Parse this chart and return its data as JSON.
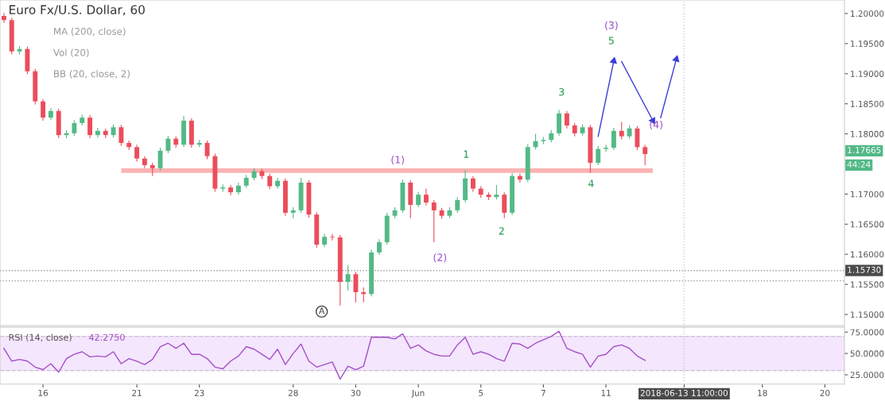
{
  "chart_data": [
    {
      "type": "candlestick",
      "title": "Euro Fx/U.S. Dollar, 60",
      "categories": [
        null,
        null,
        null,
        null,
        null,
        null,
        null,
        null,
        null,
        null,
        null,
        null,
        null,
        null,
        null,
        null,
        null,
        null,
        null,
        null,
        null,
        null,
        null,
        null,
        null,
        null,
        null,
        null,
        null,
        null,
        null,
        null,
        null,
        null,
        null,
        null,
        null,
        null,
        null,
        null,
        null,
        null,
        null,
        null,
        null,
        null,
        null,
        null,
        null,
        null,
        null,
        null,
        null,
        null,
        null,
        null,
        null,
        null,
        null,
        null,
        null,
        null,
        null,
        null,
        null,
        null,
        null,
        null,
        null,
        null,
        null,
        null,
        null,
        null,
        null,
        null,
        null,
        null,
        null,
        null,
        null,
        null,
        null,
        null,
        null,
        null,
        null,
        null,
        null,
        null,
        null,
        null,
        null,
        null,
        null,
        null,
        null,
        null,
        null,
        null,
        null,
        null,
        null,
        null,
        null,
        null,
        null,
        null
      ],
      "ohlc": [
        [
          1.1996,
          1.2001,
          1.1984,
          1.1989
        ],
        [
          1.1989,
          1.1993,
          1.1932,
          1.1937
        ],
        [
          1.1937,
          1.1946,
          1.1932,
          1.1941
        ],
        [
          1.1941,
          1.1945,
          1.1899,
          1.1904
        ],
        [
          1.1904,
          1.1908,
          1.1849,
          1.1854
        ],
        [
          1.1854,
          1.1858,
          1.1822,
          1.1827
        ],
        [
          1.1827,
          1.1843,
          1.1823,
          1.1838
        ],
        [
          1.1838,
          1.1842,
          1.1793,
          1.1798
        ],
        [
          1.1798,
          1.1806,
          1.1793,
          1.1801
        ],
        [
          1.1801,
          1.1823,
          1.1797,
          1.1818
        ],
        [
          1.1818,
          1.1832,
          1.1814,
          1.1827
        ],
        [
          1.1827,
          1.1831,
          1.1793,
          1.1798
        ],
        [
          1.1798,
          1.181,
          1.1794,
          1.1805
        ],
        [
          1.1805,
          1.1809,
          1.1793,
          1.1798
        ],
        [
          1.1798,
          1.1816,
          1.1794,
          1.1811
        ],
        [
          1.1811,
          1.1815,
          1.178,
          1.1785
        ],
        [
          1.1785,
          1.1789,
          1.1773,
          1.1778
        ],
        [
          1.1778,
          1.1782,
          1.1754,
          1.1759
        ],
        [
          1.1759,
          1.1763,
          1.1743,
          1.1748
        ],
        [
          1.1748,
          1.1752,
          1.173,
          1.1743
        ],
        [
          1.1743,
          1.1777,
          1.1739,
          1.1772
        ],
        [
          1.1772,
          1.1797,
          1.1768,
          1.1792
        ],
        [
          1.1792,
          1.1796,
          1.1777,
          1.1782
        ],
        [
          1.1782,
          1.183,
          1.1778,
          1.1822
        ],
        [
          1.1822,
          1.1826,
          1.1777,
          1.1782
        ],
        [
          1.1782,
          1.179,
          1.1778,
          1.1785
        ],
        [
          1.1785,
          1.1789,
          1.1758,
          1.1763
        ],
        [
          1.1763,
          1.1767,
          1.1704,
          1.1709
        ],
        [
          1.1709,
          1.1716,
          1.1704,
          1.1711
        ],
        [
          1.1711,
          1.1715,
          1.1698,
          1.1703
        ],
        [
          1.1703,
          1.1719,
          1.1699,
          1.1714
        ],
        [
          1.1714,
          1.1732,
          1.171,
          1.1727
        ],
        [
          1.1727,
          1.1743,
          1.1723,
          1.1738
        ],
        [
          1.1738,
          1.1742,
          1.1725,
          1.173
        ],
        [
          1.173,
          1.1734,
          1.1708,
          1.1713
        ],
        [
          1.1713,
          1.1727,
          1.1709,
          1.1722
        ],
        [
          1.1722,
          1.1726,
          1.1664,
          1.1669
        ],
        [
          1.1669,
          1.1678,
          1.166,
          1.1673
        ],
        [
          1.1673,
          1.1727,
          1.1669,
          1.1719
        ],
        [
          1.1719,
          1.1723,
          1.1661,
          1.1666
        ],
        [
          1.1666,
          1.167,
          1.1611,
          1.1616
        ],
        [
          1.1616,
          1.1634,
          1.1612,
          1.1629
        ],
        [
          1.1629,
          1.1634,
          1.1623,
          1.1628
        ],
        [
          1.1628,
          1.1632,
          1.1515,
          1.1554
        ],
        [
          1.1554,
          1.1582,
          1.154,
          1.1567
        ],
        [
          1.1567,
          1.1571,
          1.152,
          1.1537
        ],
        [
          1.1537,
          1.1545,
          1.152,
          1.1534
        ],
        [
          1.1534,
          1.1608,
          1.153,
          1.1603
        ],
        [
          1.1603,
          1.1625,
          1.1599,
          1.162
        ],
        [
          1.162,
          1.1669,
          1.1616,
          1.1664
        ],
        [
          1.1664,
          1.1678,
          1.166,
          1.1673
        ],
        [
          1.1673,
          1.1724,
          1.1669,
          1.1719
        ],
        [
          1.1719,
          1.1723,
          1.166,
          1.1682
        ],
        [
          1.1682,
          1.1704,
          1.1678,
          1.1699
        ],
        [
          1.1699,
          1.1709,
          1.1681,
          1.1686
        ],
        [
          1.1686,
          1.169,
          1.162,
          1.1673
        ],
        [
          1.1673,
          1.1677,
          1.1659,
          1.1664
        ],
        [
          1.1664,
          1.1678,
          1.166,
          1.1673
        ],
        [
          1.1673,
          1.1695,
          1.1669,
          1.169
        ],
        [
          1.169,
          1.174,
          1.1686,
          1.1726
        ],
        [
          1.1726,
          1.173,
          1.1704,
          1.1709
        ],
        [
          1.1709,
          1.1713,
          1.1694,
          1.1699
        ],
        [
          1.1699,
          1.1703,
          1.169,
          1.1695
        ],
        [
          1.1695,
          1.1715,
          1.1691,
          1.1699
        ],
        [
          1.1699,
          1.1703,
          1.166,
          1.1669
        ],
        [
          1.1669,
          1.1735,
          1.1665,
          1.173
        ],
        [
          1.173,
          1.1734,
          1.1719,
          1.1724
        ],
        [
          1.1724,
          1.1783,
          1.172,
          1.1778
        ],
        [
          1.1778,
          1.18,
          1.1774,
          1.1788
        ],
        [
          1.1788,
          1.1795,
          1.1783,
          1.179
        ],
        [
          1.179,
          1.1806,
          1.1786,
          1.1801
        ],
        [
          1.1801,
          1.184,
          1.1797,
          1.1834
        ],
        [
          1.1834,
          1.1838,
          1.1809,
          1.1814
        ],
        [
          1.1814,
          1.1818,
          1.1796,
          1.1801
        ],
        [
          1.1801,
          1.1816,
          1.1797,
          1.1811
        ],
        [
          1.1811,
          1.1815,
          1.1735,
          1.1752
        ],
        [
          1.1752,
          1.178,
          1.1748,
          1.1775
        ],
        [
          1.1775,
          1.1782,
          1.177,
          1.1777
        ],
        [
          1.1777,
          1.181,
          1.1773,
          1.1805
        ],
        [
          1.1805,
          1.182,
          1.1791,
          1.1796
        ],
        [
          1.1796,
          1.1814,
          1.1792,
          1.1809
        ],
        [
          1.1809,
          1.1813,
          1.1773,
          1.1778
        ],
        [
          1.1778,
          1.1782,
          1.1748,
          1.17665
        ],
        null,
        null,
        null,
        null,
        null,
        null,
        null,
        null,
        null,
        null,
        null,
        null,
        null,
        null,
        null,
        null,
        null,
        null,
        null,
        null,
        null,
        null,
        null,
        null,
        null
      ],
      "colors": [
        "#eb4d5c",
        "#eb4d5c",
        "#53b987",
        "#eb4d5c",
        "#eb4d5c",
        "#eb4d5c",
        "#53b987",
        "#eb4d5c",
        "#53b987",
        "#53b987",
        "#53b987",
        "#eb4d5c",
        "#53b987",
        "#eb4d5c",
        "#53b987",
        "#eb4d5c",
        "#eb4d5c",
        "#eb4d5c",
        "#eb4d5c",
        "#eb4d5c",
        "#53b987",
        "#53b987",
        "#eb4d5c",
        "#53b987",
        "#eb4d5c",
        "#53b987",
        "#eb4d5c",
        "#eb4d5c",
        "#53b987",
        "#eb4d5c",
        "#53b987",
        "#53b987",
        "#53b987",
        "#eb4d5c",
        "#eb4d5c",
        "#53b987",
        "#eb4d5c",
        "#53b987",
        "#53b987",
        "#eb4d5c",
        "#eb4d5c",
        "#53b987",
        "#eb4d5c",
        "#eb4d5c",
        "#53b987",
        "#eb4d5c",
        "#eb4d5c",
        "#53b987",
        "#53b987",
        "#53b987",
        "#53b987",
        "#53b987",
        "#eb4d5c",
        "#53b987",
        "#eb4d5c",
        "#eb4d5c",
        "#eb4d5c",
        "#53b987",
        "#53b987",
        "#53b987",
        "#eb4d5c",
        "#eb4d5c",
        "#eb4d5c",
        "#53b987",
        "#eb4d5c",
        "#53b987",
        "#eb4d5c",
        "#53b987",
        "#53b987",
        "#53b987",
        "#53b987",
        "#53b987",
        "#eb4d5c",
        "#eb4d5c",
        "#53b987",
        "#eb4d5c",
        "#53b987",
        "#53b987",
        "#53b987",
        "#eb4d5c",
        "#53b987",
        "#eb4d5c",
        "#eb4d5c",
        null,
        null,
        null,
        null,
        null,
        null,
        null,
        null,
        null,
        null,
        null,
        null,
        null,
        null,
        null,
        null,
        null,
        null,
        null,
        null,
        null,
        null,
        null,
        null,
        null
      ],
      "series": [
        {
          "type": "line",
          "color": "#fbb3b3",
          "values": [
            null,
            null,
            null,
            null,
            null,
            null,
            null,
            null,
            null,
            null,
            null,
            null,
            null,
            null,
            null,
            1.1739,
            1.1739,
            1.1739,
            1.1739,
            1.1739,
            1.1739,
            1.1739,
            1.1739,
            1.1739,
            1.1739,
            1.1739,
            1.1739,
            1.1739,
            1.1739,
            1.1739,
            1.1739,
            1.1739,
            1.1739,
            1.1739,
            1.1739,
            1.1739,
            1.1739,
            1.1739,
            1.1739,
            1.1739,
            1.1739,
            1.1739,
            1.1739,
            1.1739,
            1.1739,
            1.1739,
            1.1739,
            1.1739,
            1.1739,
            1.1739,
            1.1739,
            1.1739,
            1.1739,
            1.1739,
            1.1739,
            1.1739,
            1.1739,
            1.1739,
            1.1739,
            1.1739,
            1.1739,
            1.1739,
            1.1739,
            1.1739,
            1.1739,
            1.1739,
            1.1739,
            1.1739,
            1.1739,
            1.1739,
            1.1739,
            1.1739,
            1.1739,
            1.1739,
            1.1739,
            1.1739,
            1.1739,
            1.1739,
            1.1739,
            1.1739,
            1.1739,
            1.1739,
            1.1739,
            1.1739,
            null,
            null,
            null,
            null,
            null,
            null,
            null,
            null,
            null,
            null,
            null,
            null,
            null,
            null,
            null,
            null,
            null,
            null,
            null,
            null,
            null,
            null,
            null,
            null
          ]
        },
        {
          "type": "line",
          "color": "#3b3bd9",
          "values": [
            null,
            null,
            null,
            null,
            null,
            null,
            null,
            null,
            null,
            null,
            null,
            null,
            null,
            null,
            null,
            null,
            null,
            null,
            null,
            null,
            null,
            null,
            null,
            null,
            null,
            null,
            null,
            null,
            null,
            null,
            null,
            null,
            null,
            null,
            null,
            null,
            null,
            null,
            null,
            null,
            null,
            null,
            null,
            null,
            null,
            null,
            null,
            null,
            null,
            null,
            null,
            null,
            null,
            null,
            null,
            null,
            null,
            null,
            null,
            null,
            null,
            null,
            null,
            null,
            null,
            null,
            null,
            null,
            null,
            null,
            null,
            null,
            null,
            null,
            null,
            null,
            1.1796,
            null,
            1.1921,
            null,
            null,
            null,
            null,
            null,
            null,
            null,
            null,
            null,
            null,
            null,
            null,
            null,
            null,
            null,
            null,
            null,
            null,
            null,
            null,
            null,
            null,
            null,
            null,
            null,
            null,
            null,
            null,
            null
          ]
        },
        {
          "type": "line",
          "color": "#3b3bd9",
          "values": [
            null,
            null,
            null,
            null,
            null,
            null,
            null,
            null,
            null,
            null,
            null,
            null,
            null,
            null,
            null,
            null,
            null,
            null,
            null,
            null,
            null,
            null,
            null,
            null,
            null,
            null,
            null,
            null,
            null,
            null,
            null,
            null,
            null,
            null,
            null,
            null,
            null,
            null,
            null,
            null,
            null,
            null,
            null,
            null,
            null,
            null,
            null,
            null,
            null,
            null,
            null,
            null,
            null,
            null,
            null,
            null,
            null,
            null,
            null,
            null,
            null,
            null,
            null,
            null,
            null,
            null,
            null,
            null,
            null,
            null,
            null,
            null,
            null,
            null,
            null,
            null,
            null,
            null,
            null,
            1.192,
            null,
            null,
            null,
            1.1822,
            null,
            null,
            null,
            null,
            null,
            null,
            null,
            null,
            null,
            null,
            null,
            null,
            null,
            null,
            null,
            null,
            null,
            null,
            null,
            null,
            null,
            null,
            null,
            null
          ]
        },
        {
          "type": "line",
          "color": "#3b3bd9",
          "values": [
            null,
            null,
            null,
            null,
            null,
            null,
            null,
            null,
            null,
            null,
            null,
            null,
            null,
            null,
            null,
            null,
            null,
            null,
            null,
            null,
            null,
            null,
            null,
            null,
            null,
            null,
            null,
            null,
            null,
            null,
            null,
            null,
            null,
            null,
            null,
            null,
            null,
            null,
            null,
            null,
            null,
            null,
            null,
            null,
            null,
            null,
            null,
            null,
            null,
            null,
            null,
            null,
            null,
            null,
            null,
            null,
            null,
            null,
            null,
            null,
            null,
            null,
            null,
            null,
            null,
            null,
            null,
            null,
            null,
            null,
            null,
            null,
            null,
            null,
            null,
            null,
            null,
            null,
            null,
            null,
            null,
            null,
            null,
            null,
            1.1827,
            null,
            1.1924,
            null,
            null,
            null,
            null,
            null,
            null,
            null,
            null,
            null,
            null,
            null,
            null,
            null,
            null,
            null,
            null,
            null,
            null,
            null,
            null,
            null
          ]
        }
      ],
      "ylim": [
        1.14815,
        1.20224
      ],
      "yticks": [
        {
          "value": 1.15,
          "label": "1.15000"
        },
        {
          "value": 1.155,
          "label": "1.15500"
        },
        {
          "value": 1.16,
          "label": "1.16000"
        },
        {
          "value": 1.165,
          "label": "1.16500"
        },
        {
          "value": 1.17,
          "label": "1.17000"
        },
        {
          "value": 1.18,
          "label": "1.18000"
        },
        {
          "value": 1.185,
          "label": "1.18500"
        },
        {
          "value": 1.19,
          "label": "1.19000"
        },
        {
          "value": 1.195,
          "label": "1.19500"
        },
        {
          "value": 1.2,
          "label": "1.20000"
        }
      ],
      "tick_labels": "y",
      "ref_lines": [
        {
          "axis": "y",
          "value": 1.1573,
          "label": "1.15730",
          "color": "#999999",
          "line_style": "dotted"
        },
        {
          "axis": "y",
          "value": 1.1556,
          "color": "#999999",
          "line_style": "dotted"
        }
      ],
      "annotations": [
        "MA (200, close)",
        "Vol (20)",
        "BB (20, close, 2)",
        "1.17665",
        "44:24",
        "(3)",
        "5",
        "3",
        "1",
        "(1)",
        "2",
        "(2)",
        "4",
        {
          "text": "(4)",
          "y": 1.1822
        },
        "A"
      ],
      "grid": false
    },
    {
      "type": "line",
      "title": "RSI (14, close)",
      "categories": [
        null,
        null,
        null,
        null,
        null,
        "16",
        null,
        null,
        null,
        null,
        null,
        null,
        null,
        null,
        null,
        null,
        null,
        "21",
        null,
        null,
        null,
        null,
        null,
        null,
        null,
        "23",
        null,
        null,
        null,
        null,
        null,
        null,
        null,
        null,
        null,
        null,
        null,
        "28",
        null,
        null,
        null,
        null,
        null,
        null,
        null,
        "30",
        null,
        null,
        null,
        null,
        null,
        null,
        null,
        "Jun",
        null,
        null,
        null,
        null,
        null,
        null,
        null,
        "5",
        null,
        null,
        null,
        null,
        null,
        null,
        null,
        "7",
        null,
        null,
        null,
        null,
        null,
        null,
        null,
        "11",
        null,
        null,
        null,
        null,
        null,
        null,
        null,
        null,
        null,
        "2018-06-13 11:00:00",
        null,
        null,
        null,
        null,
        null,
        null,
        null,
        null,
        null,
        "18",
        null,
        null,
        null,
        null,
        null,
        null,
        null,
        "20",
        null,
        null
      ],
      "series": [
        {
          "color": "#a64fc7",
          "values": [
            56,
            41,
            43,
            41,
            34,
            31,
            38,
            28,
            44,
            49,
            52,
            46,
            47,
            46,
            52,
            38,
            44,
            41,
            37,
            43,
            58,
            62,
            56,
            62,
            49,
            49,
            44,
            34,
            32,
            41,
            47,
            58,
            55,
            49,
            43,
            55,
            37,
            50,
            61,
            41,
            34,
            37,
            40,
            20,
            35,
            31,
            35,
            69,
            69,
            69,
            67,
            73,
            56,
            60,
            53,
            49,
            47,
            47,
            60,
            69,
            49,
            52,
            49,
            44,
            41,
            62,
            61,
            56,
            62,
            66,
            70,
            76,
            56,
            52,
            49,
            34,
            47,
            49,
            58,
            60,
            56,
            47,
            42,
            null,
            null,
            null,
            null,
            null,
            null,
            null,
            null,
            null,
            null,
            null,
            null,
            null,
            null,
            null,
            null,
            null,
            null,
            null,
            null,
            null,
            null,
            null,
            null,
            null
          ]
        }
      ],
      "ylim": [
        14,
        81
      ],
      "yticks": [
        {
          "value": 25,
          "label": "25.0000"
        },
        {
          "value": 50,
          "label": "50.0000"
        },
        {
          "value": 75,
          "label": "75.0000"
        }
      ],
      "bands": [
        {
          "axis": "y",
          "from": 30,
          "to": 70,
          "color": "#f3e6fd"
        }
      ],
      "ref_lines": [
        {
          "axis": "x",
          "value": "2018-06-13 11:00:00",
          "color": "#cccccc",
          "line_style": "dotted"
        },
        {
          "axis": "y",
          "value": 70,
          "color": "#c9c0d0",
          "line_style": "dashed"
        },
        {
          "axis": "y",
          "value": 30,
          "color": "#c9c0d0",
          "line_style": "dashed"
        }
      ],
      "annotations": [
        "42.2750"
      ],
      "grid": false,
      "line_style": "solid",
      "marker": "none"
    }
  ]
}
